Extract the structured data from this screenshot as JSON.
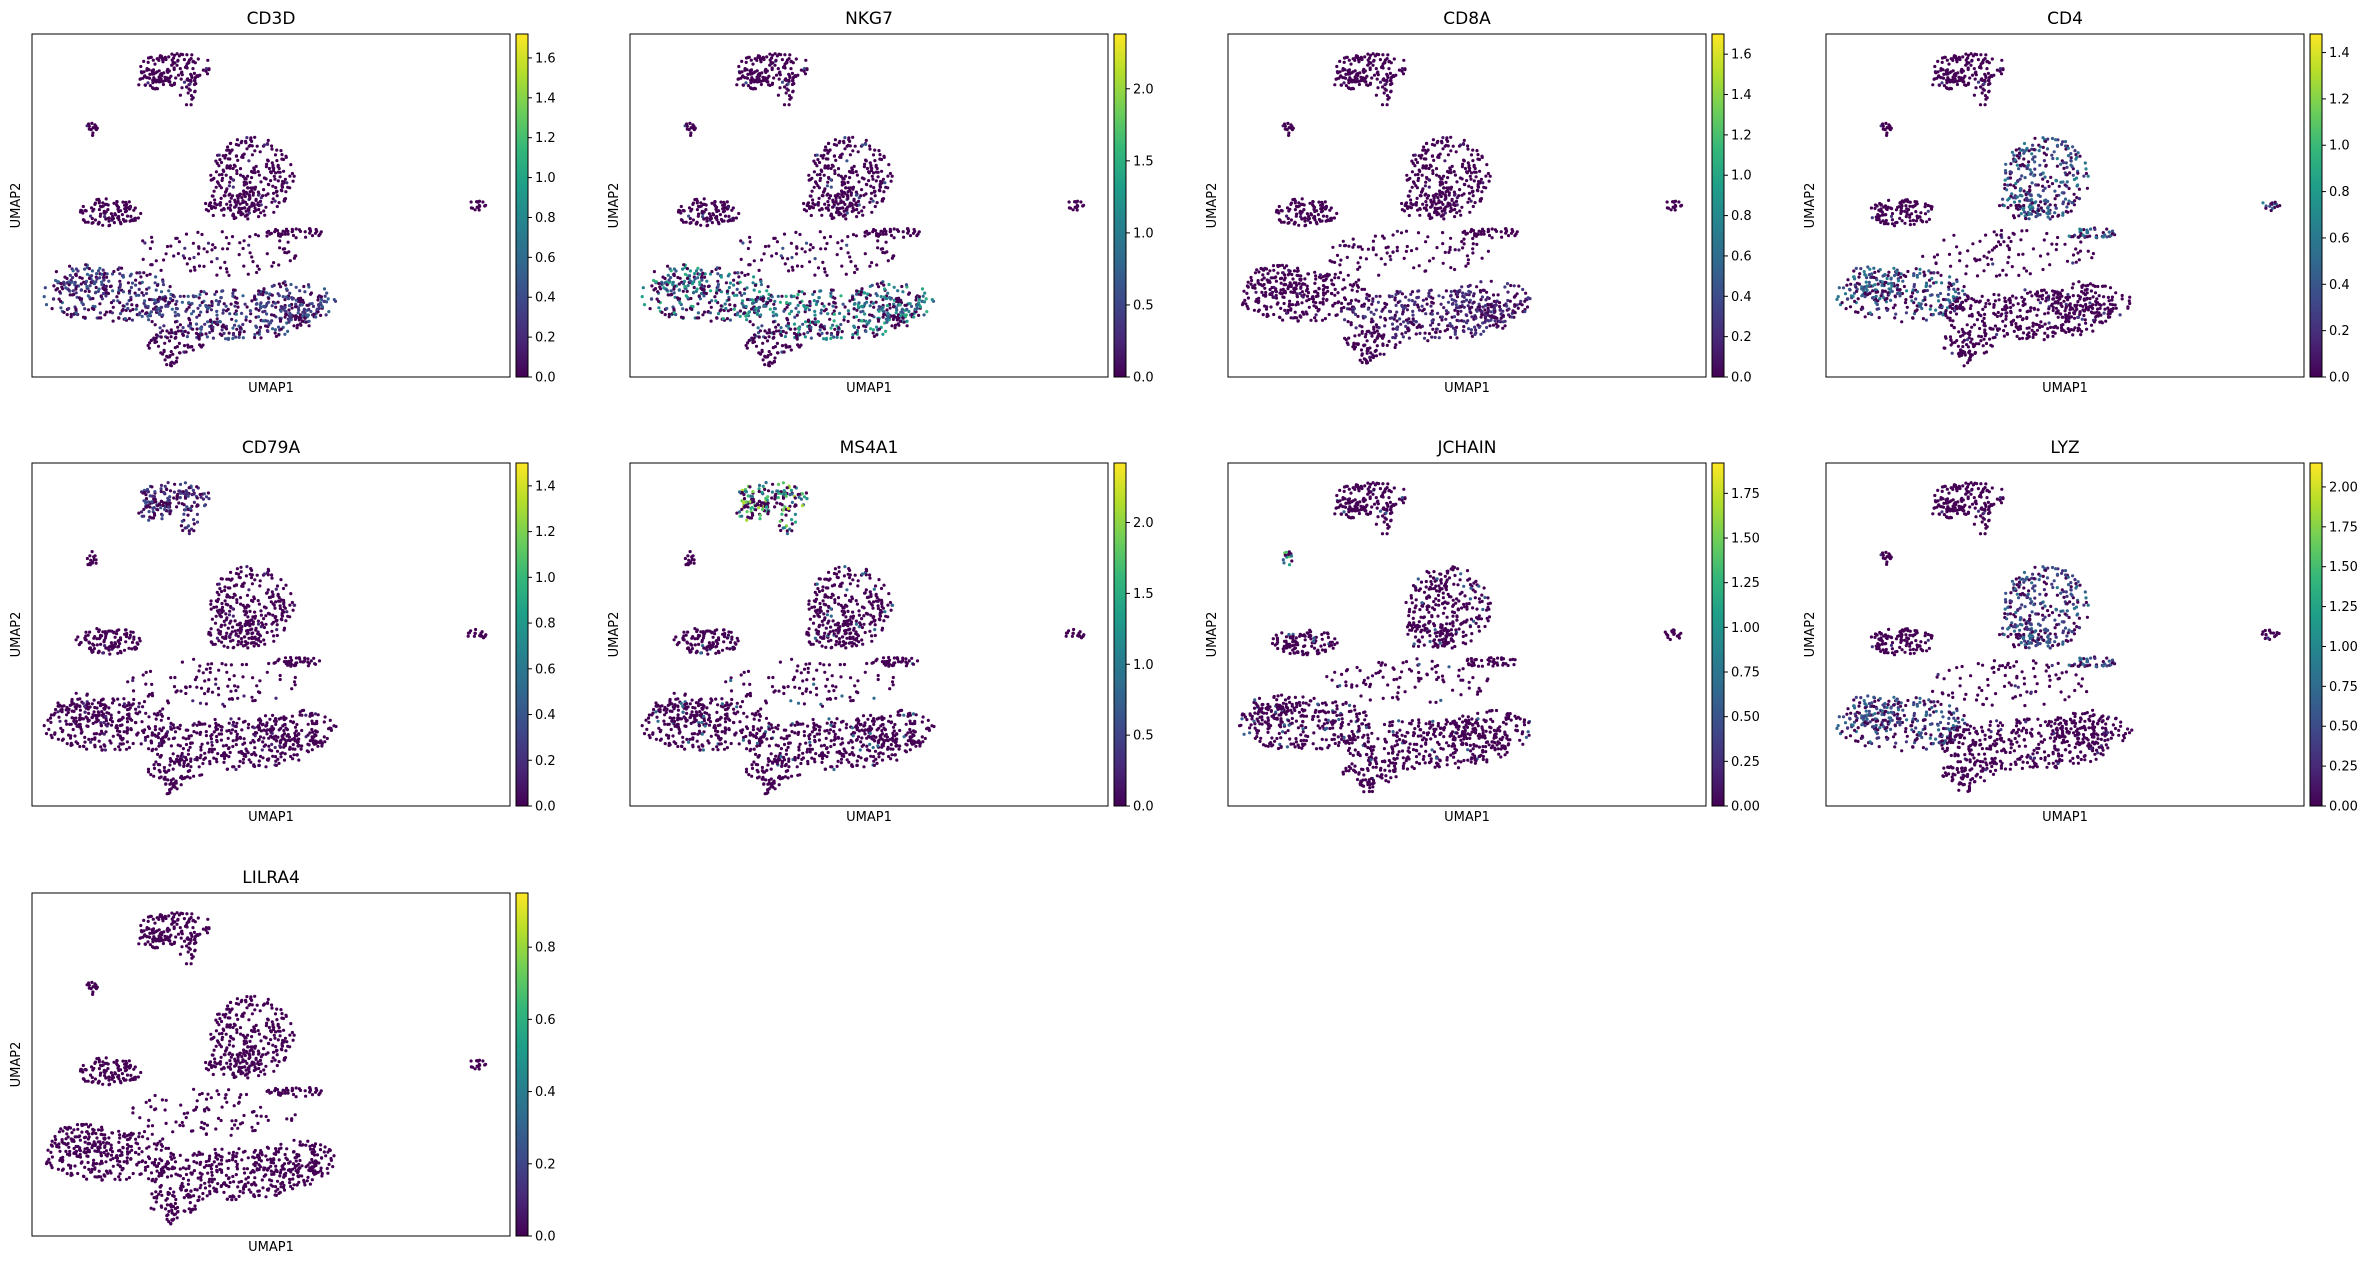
{
  "colormap": "viridis",
  "colormap_stops": [
    "#440154",
    "#482878",
    "#3e4989",
    "#31688e",
    "#26828e",
    "#1f9e89",
    "#35b779",
    "#6ece58",
    "#b5de2b",
    "#fde725"
  ],
  "chart_data": [
    {
      "type": "scatter",
      "title": "CD3D",
      "xlabel": "UMAP1",
      "ylabel": "UMAP2",
      "color_range": [
        0,
        1.72
      ],
      "colorbar_ticks": [
        "0.0",
        "0.2",
        "0.4",
        "0.6",
        "0.8",
        "1.0",
        "1.2",
        "1.4",
        "1.6"
      ],
      "tick_values": [
        0,
        0.2,
        0.4,
        0.6,
        0.8,
        1.0,
        1.2,
        1.4,
        1.6
      ],
      "high_expression_clusters": [
        "bottom-left",
        "bottom-right"
      ],
      "expression_level": 0.25
    },
    {
      "type": "scatter",
      "title": "NKG7",
      "xlabel": "UMAP1",
      "ylabel": "UMAP2",
      "color_range": [
        0,
        2.38
      ],
      "colorbar_ticks": [
        "0.0",
        "0.5",
        "1.0",
        "1.5",
        "2.0"
      ],
      "tick_values": [
        0,
        0.5,
        1.0,
        1.5,
        2.0
      ],
      "high_expression_clusters": [
        "bottom-right",
        "bottom-left"
      ],
      "expression_level": 0.5
    },
    {
      "type": "scatter",
      "title": "CD8A",
      "xlabel": "UMAP1",
      "ylabel": "UMAP2",
      "color_range": [
        0,
        1.7
      ],
      "colorbar_ticks": [
        "0.0",
        "0.2",
        "0.4",
        "0.6",
        "0.8",
        "1.0",
        "1.2",
        "1.4",
        "1.6"
      ],
      "tick_values": [
        0,
        0.2,
        0.4,
        0.6,
        0.8,
        1.0,
        1.2,
        1.4,
        1.6
      ],
      "high_expression_clusters": [
        "bottom-right"
      ],
      "expression_level": 0.15
    },
    {
      "type": "scatter",
      "title": "CD4",
      "xlabel": "UMAP1",
      "ylabel": "UMAP2",
      "color_range": [
        0,
        1.48
      ],
      "colorbar_ticks": [
        "0.0",
        "0.2",
        "0.4",
        "0.6",
        "0.8",
        "1.0",
        "1.2",
        "1.4"
      ],
      "tick_values": [
        0,
        0.2,
        0.4,
        0.6,
        0.8,
        1.0,
        1.2,
        1.4
      ],
      "high_expression_clusters": [
        "middle",
        "bottom-left",
        "right-island",
        "middle-streak"
      ],
      "expression_level": 0.35
    },
    {
      "type": "scatter",
      "title": "CD79A",
      "xlabel": "UMAP1",
      "ylabel": "UMAP2",
      "color_range": [
        0,
        1.5
      ],
      "colorbar_ticks": [
        "0.0",
        "0.2",
        "0.4",
        "0.6",
        "0.8",
        "1.0",
        "1.2",
        "1.4"
      ],
      "tick_values": [
        0,
        0.2,
        0.4,
        0.6,
        0.8,
        1.0,
        1.2,
        1.4
      ],
      "high_expression_clusters": [
        "top"
      ],
      "expression_level": 0.2
    },
    {
      "type": "scatter",
      "title": "MS4A1",
      "xlabel": "UMAP1",
      "ylabel": "UMAP2",
      "color_range": [
        0,
        2.42
      ],
      "colorbar_ticks": [
        "0.0",
        "0.5",
        "1.0",
        "1.5",
        "2.0"
      ],
      "tick_values": [
        0,
        0.5,
        1.0,
        1.5,
        2.0
      ],
      "high_expression_clusters": [
        "top"
      ],
      "expression_level": 0.7
    },
    {
      "type": "scatter",
      "title": "JCHAIN",
      "xlabel": "UMAP1",
      "ylabel": "UMAP2",
      "color_range": [
        0,
        1.92
      ],
      "colorbar_ticks": [
        "0.00",
        "0.25",
        "0.50",
        "0.75",
        "1.00",
        "1.25",
        "1.50",
        "1.75"
      ],
      "tick_values": [
        0,
        0.25,
        0.5,
        0.75,
        1.0,
        1.25,
        1.5,
        1.75
      ],
      "high_expression_clusters": [
        "small-left"
      ],
      "expression_level": 0.6
    },
    {
      "type": "scatter",
      "title": "LYZ",
      "xlabel": "UMAP1",
      "ylabel": "UMAP2",
      "color_range": [
        0,
        2.15
      ],
      "colorbar_ticks": [
        "0.00",
        "0.25",
        "0.50",
        "0.75",
        "1.00",
        "1.25",
        "1.50",
        "1.75",
        "2.00"
      ],
      "tick_values": [
        0,
        0.25,
        0.5,
        0.75,
        1.0,
        1.25,
        1.5,
        1.75,
        2.0
      ],
      "high_expression_clusters": [
        "middle",
        "middle-streak",
        "bottom-left"
      ],
      "expression_level": 0.3
    },
    {
      "type": "scatter",
      "title": "LILRA4",
      "xlabel": "UMAP1",
      "ylabel": "UMAP2",
      "color_range": [
        0,
        0.95
      ],
      "colorbar_ticks": [
        "0.0",
        "0.2",
        "0.4",
        "0.6",
        "0.8"
      ],
      "tick_values": [
        0,
        0.2,
        0.4,
        0.6,
        0.8
      ],
      "high_expression_clusters": [],
      "expression_level": 0.0
    }
  ]
}
